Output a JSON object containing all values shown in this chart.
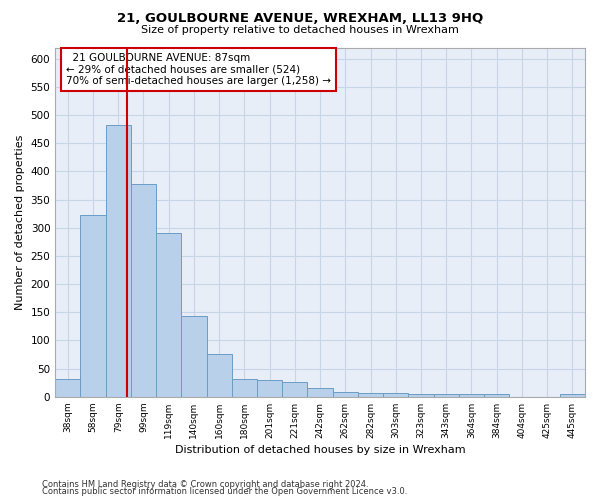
{
  "title": "21, GOULBOURNE AVENUE, WREXHAM, LL13 9HQ",
  "subtitle": "Size of property relative to detached houses in Wrexham",
  "xlabel": "Distribution of detached houses by size in Wrexham",
  "ylabel": "Number of detached properties",
  "footnote1": "Contains HM Land Registry data © Crown copyright and database right 2024.",
  "footnote2": "Contains public sector information licensed under the Open Government Licence v3.0.",
  "bar_color": "#b8d0ea",
  "bar_edge_color": "#6a9ec5",
  "grid_color": "#c8d4e8",
  "background_color": "#e8eef8",
  "annotation_box_color": "#cc0000",
  "vline_color": "#cc0000",
  "property_label": "21 GOULBOURNE AVENUE: 87sqm",
  "smaller_pct": "29%",
  "smaller_count": "524",
  "larger_pct": "70%",
  "larger_count": "1,258",
  "categories": [
    "38sqm",
    "58sqm",
    "79sqm",
    "99sqm",
    "119sqm",
    "140sqm",
    "160sqm",
    "180sqm",
    "201sqm",
    "221sqm",
    "242sqm",
    "262sqm",
    "282sqm",
    "303sqm",
    "323sqm",
    "343sqm",
    "364sqm",
    "384sqm",
    "404sqm",
    "425sqm",
    "445sqm"
  ],
  "values": [
    32,
    322,
    483,
    377,
    291,
    144,
    76,
    32,
    29,
    27,
    16,
    9,
    7,
    6,
    5,
    5,
    5,
    5,
    0,
    0,
    5
  ],
  "ylim": [
    0,
    620
  ],
  "yticks": [
    0,
    50,
    100,
    150,
    200,
    250,
    300,
    350,
    400,
    450,
    500,
    550,
    600
  ],
  "vline_x_index": 2.35
}
